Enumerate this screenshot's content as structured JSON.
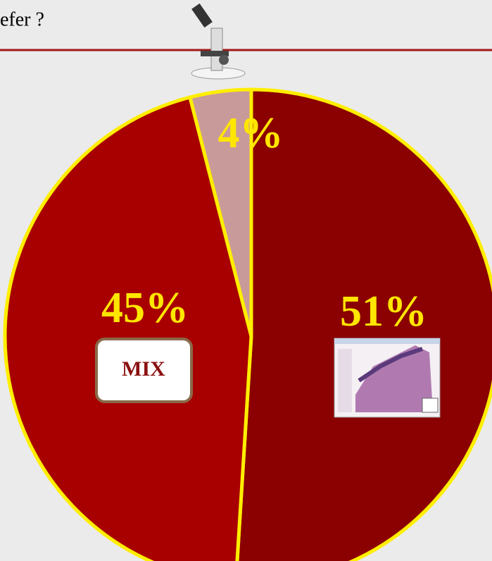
{
  "chart_data": {
    "type": "pie",
    "title": "efer ?",
    "values": [
      51,
      45,
      4
    ],
    "value_labels": [
      "51%",
      "45%",
      "4%"
    ],
    "colors": [
      "#8b0000",
      "#a80000",
      "#c99a9a"
    ],
    "badge": "MIX"
  }
}
